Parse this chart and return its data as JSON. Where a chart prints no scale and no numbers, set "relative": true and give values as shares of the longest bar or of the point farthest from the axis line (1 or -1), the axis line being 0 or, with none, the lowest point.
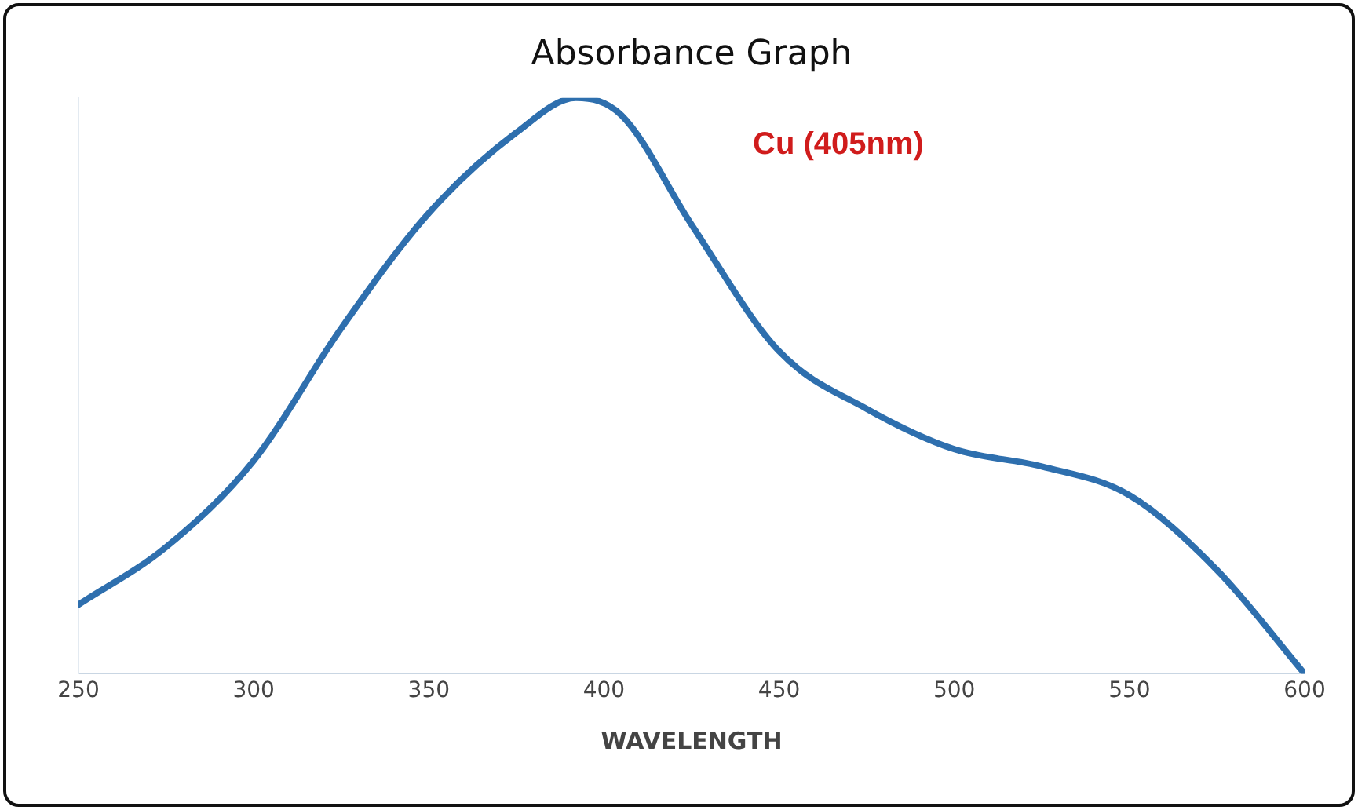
{
  "chart_data": {
    "type": "line",
    "title": "Absorbance Graph",
    "xlabel": "WAVELENGTH",
    "relative": true,
    "x": [
      250,
      275,
      300,
      325,
      350,
      375,
      392,
      405,
      425,
      450,
      475,
      500,
      525,
      550,
      575,
      600
    ],
    "series": [
      {
        "color": "#2e6fae",
        "values": [
          0.12,
          0.22,
          0.37,
          0.6,
          0.8,
          0.94,
          1,
          0.97,
          0.78,
          0.56,
          0.46,
          0.39,
          0.36,
          0.31,
          0.18,
          0
        ]
      }
    ],
    "xlim": [
      250,
      600
    ],
    "xticks": [
      250,
      300,
      350,
      400,
      450,
      500,
      550,
      600
    ],
    "annotations": [
      "Cu (405nm)"
    ],
    "grid": false,
    "legend": false,
    "marker": "none",
    "line_style": "solid"
  }
}
